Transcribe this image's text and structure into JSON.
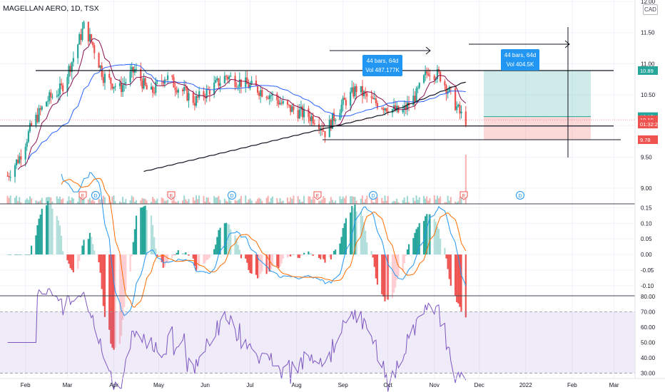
{
  "title": "MAGELLAN AERO, 1D, TSX",
  "currency": "CAD",
  "colors": {
    "up": "#26a69a",
    "down": "#ef5350",
    "ma_blue": "#2962ff",
    "ma_red": "#880e4f",
    "ma200": "#131722",
    "rsi": "#7e57c2",
    "macd": "#2196f3",
    "signal": "#ff6d00"
  },
  "chart_data": [
    {
      "type": "candlestick",
      "name": "price",
      "x_ticks": [
        "Feb",
        "Mar",
        "Apr",
        "May",
        "Jun",
        "Jul",
        "Aug",
        "Sep",
        "Oct",
        "Nov",
        "Dec",
        "2022",
        "Feb",
        "Mar"
      ],
      "y_ticks": [
        "12.00",
        "11.50",
        "11.00",
        "10.50",
        "10.00",
        "9.50",
        "9.00"
      ],
      "ylim": [
        8.75,
        12.0
      ],
      "ohlc_path": [
        [
          "2021-01-20",
          9.2
        ],
        [
          "2021-01-28",
          9.5
        ],
        [
          "2021-02-05",
          10.0
        ],
        [
          "2021-02-15",
          10.4
        ],
        [
          "2021-02-25",
          10.6
        ],
        [
          "2021-03-05",
          11.1
        ],
        [
          "2021-03-12",
          11.6
        ],
        [
          "2021-03-18",
          11.3
        ],
        [
          "2021-03-25",
          10.8
        ],
        [
          "2021-04-05",
          10.6
        ],
        [
          "2021-04-15",
          10.9
        ],
        [
          "2021-04-25",
          10.5
        ],
        [
          "2021-05-05",
          10.8
        ],
        [
          "2021-05-15",
          10.6
        ],
        [
          "2021-05-25",
          10.4
        ],
        [
          "2021-06-05",
          10.6
        ],
        [
          "2021-06-15",
          10.8
        ],
        [
          "2021-06-25",
          10.7
        ],
        [
          "2021-07-05",
          10.6
        ],
        [
          "2021-07-15",
          10.5
        ],
        [
          "2021-07-25",
          10.3
        ],
        [
          "2021-08-05",
          10.2
        ],
        [
          "2021-08-15",
          10.1
        ],
        [
          "2021-08-20",
          9.9
        ],
        [
          "2021-08-30",
          10.3
        ],
        [
          "2021-09-10",
          10.6
        ],
        [
          "2021-09-20",
          10.4
        ],
        [
          "2021-10-01",
          10.3
        ],
        [
          "2021-10-10",
          10.2
        ],
        [
          "2021-10-20",
          10.5
        ],
        [
          "2021-10-28",
          10.9
        ],
        [
          "2021-11-05",
          10.8
        ],
        [
          "2021-11-12",
          10.5
        ],
        [
          "2021-11-18",
          10.2
        ],
        [
          "2021-11-22",
          10.1
        ]
      ],
      "horizontal_levels": [
        10.89,
        10.0,
        9.78
      ],
      "price_labels": [
        {
          "text": "10.89",
          "value": 10.89,
          "color": "#26a69a"
        },
        {
          "text": "10.15",
          "value": 10.15,
          "color": "#26a69a"
        },
        {
          "text": "10.10",
          "value": 10.1,
          "color": "#ef5350"
        },
        {
          "text": "01:32:24",
          "value": 10.03,
          "color": "#ef5350"
        },
        {
          "text": "9.78",
          "value": 9.78,
          "color": "#ef5350"
        }
      ],
      "annotations": [
        {
          "lines": [
            "44 bars, 64d",
            "Vol 487.177K"
          ]
        },
        {
          "lines": [
            "44 bars, 64d",
            "Vol 404.5K"
          ]
        }
      ],
      "position": {
        "entry": 10.15,
        "target": 10.89,
        "stop": 9.78
      },
      "events": [
        "E",
        "D",
        "E",
        "D",
        "E",
        "D",
        "E",
        "D"
      ]
    },
    {
      "type": "bar",
      "name": "macd",
      "y_ticks": [
        "0.15",
        "0.10",
        "0.05",
        "0.00",
        "-0.05",
        "-0.10"
      ],
      "ylim": [
        -0.13,
        0.16
      ]
    },
    {
      "type": "line",
      "name": "rsi",
      "y_ticks": [
        "80.00",
        "70.00",
        "60.00",
        "50.00",
        "40.00",
        "30.00"
      ],
      "ylim": [
        27,
        80
      ],
      "band": [
        30,
        70
      ]
    }
  ]
}
